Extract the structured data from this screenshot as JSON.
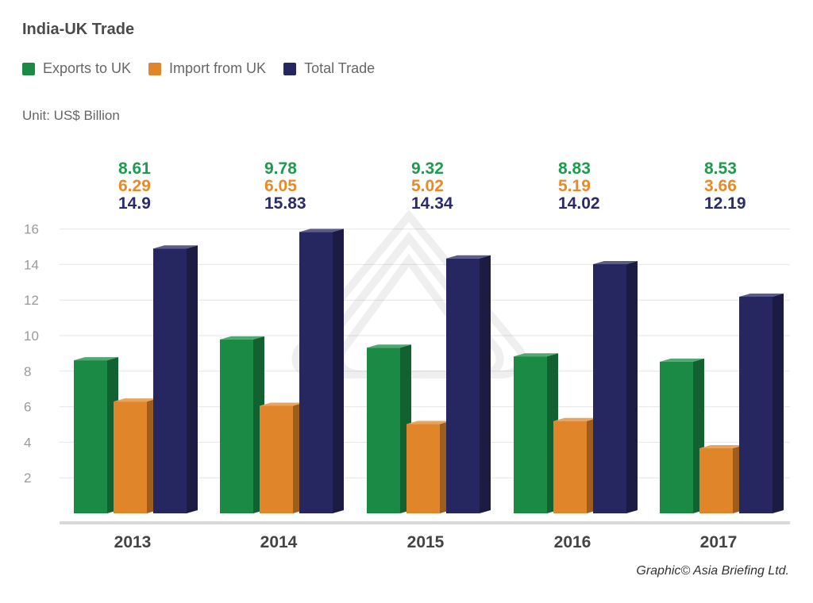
{
  "title": "India-UK Trade",
  "unit": "Unit: US$ Billion",
  "credit": "Graphic© Asia Briefing Ltd.",
  "legend": [
    {
      "label": "Exports to UK",
      "color": "#1a8a45"
    },
    {
      "label": "Import from UK",
      "color": "#e0852a"
    },
    {
      "label": "Total Trade",
      "color": "#262661"
    }
  ],
  "chart_data": {
    "type": "bar",
    "title": "India-UK Trade",
    "categories": [
      "2013",
      "2014",
      "2015",
      "2016",
      "2017"
    ],
    "series": [
      {
        "name": "Exports to UK",
        "values": [
          8.61,
          9.78,
          9.32,
          8.83,
          8.53
        ],
        "labels": [
          "8.61",
          "9.78",
          "9.32",
          "8.83",
          "8.53"
        ],
        "color": "#1a8a45",
        "label_color": "#1f9a4e"
      },
      {
        "name": "Import from UK",
        "values": [
          6.29,
          6.05,
          5.02,
          5.19,
          3.66
        ],
        "labels": [
          "6.29",
          "6.05",
          "5.02",
          "5.19",
          "3.66"
        ],
        "color": "#e0852a",
        "label_color": "#e8892a"
      },
      {
        "name": "Total Trade",
        "values": [
          14.9,
          15.83,
          14.34,
          14.02,
          12.19
        ],
        "labels": [
          "14.9",
          "15.83",
          "14.34",
          "14.02",
          "12.19"
        ],
        "color": "#262661",
        "label_color": "#2b2b6b"
      }
    ],
    "y_ticks": [
      2,
      4,
      6,
      8,
      10,
      12,
      14,
      16
    ],
    "ylim": [
      0,
      16
    ],
    "grid": true,
    "legend_position": "top-left"
  }
}
